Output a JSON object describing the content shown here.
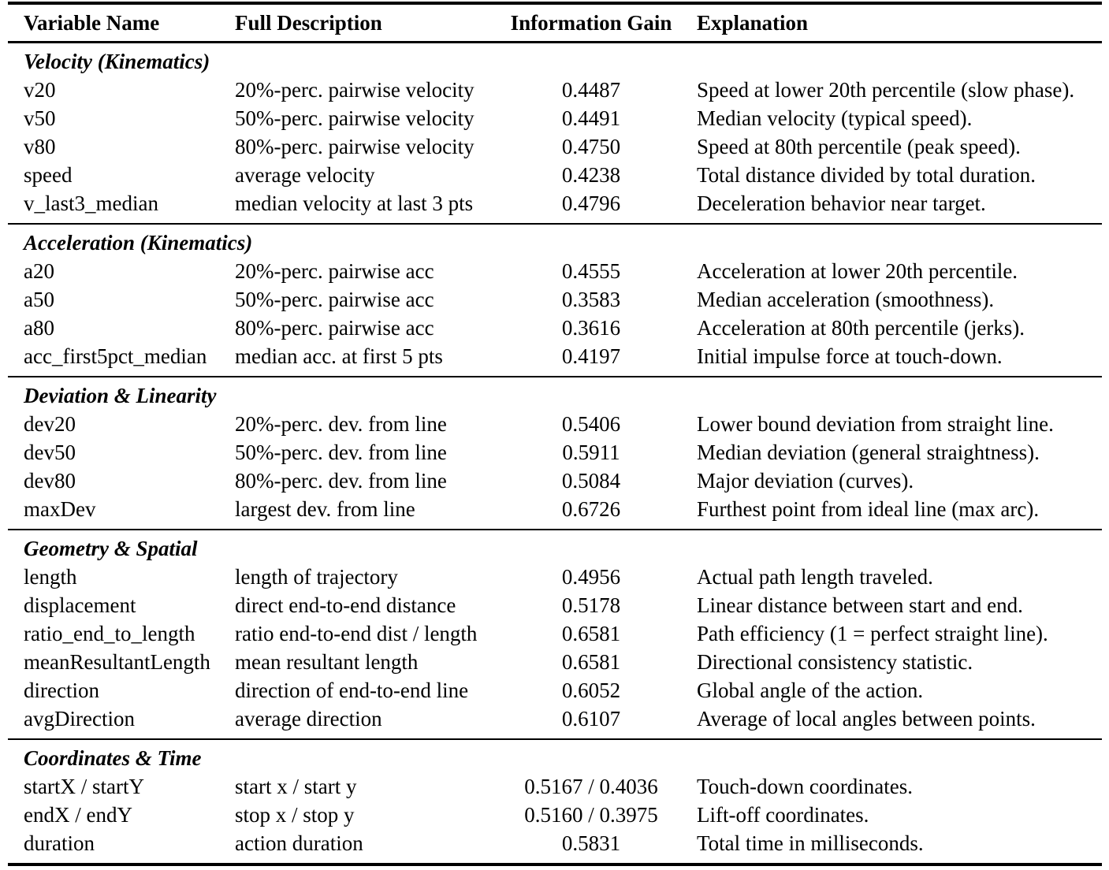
{
  "colors": {
    "background": "#ffffff",
    "text": "#000000",
    "rule": "#000000"
  },
  "table": {
    "columns": [
      "Variable Name",
      "Full Description",
      "Information Gain",
      "Explanation"
    ],
    "sections": [
      {
        "title": "Velocity (Kinematics)",
        "rows": [
          [
            "v20",
            "20%-perc. pairwise velocity",
            "0.4487",
            "Speed at lower 20th percentile (slow phase)."
          ],
          [
            "v50",
            "50%-perc. pairwise velocity",
            "0.4491",
            "Median velocity (typical speed)."
          ],
          [
            "v80",
            "80%-perc. pairwise velocity",
            "0.4750",
            "Speed at 80th percentile (peak speed)."
          ],
          [
            "speed",
            "average velocity",
            "0.4238",
            "Total distance divided by total duration."
          ],
          [
            "v_last3_median",
            "median velocity at last 3 pts",
            "0.4796",
            "Deceleration behavior near target."
          ]
        ]
      },
      {
        "title": "Acceleration (Kinematics)",
        "rows": [
          [
            "a20",
            "20%-perc. pairwise acc",
            "0.4555",
            "Acceleration at lower 20th percentile."
          ],
          [
            "a50",
            "50%-perc. pairwise acc",
            "0.3583",
            "Median acceleration (smoothness)."
          ],
          [
            "a80",
            "80%-perc. pairwise acc",
            "0.3616",
            "Acceleration at 80th percentile (jerks)."
          ],
          [
            "acc_first5pct_median",
            "median acc. at first 5 pts",
            "0.4197",
            "Initial impulse force at touch-down."
          ]
        ]
      },
      {
        "title": "Deviation & Linearity",
        "rows": [
          [
            "dev20",
            "20%-perc. dev. from line",
            "0.5406",
            "Lower bound deviation from straight line."
          ],
          [
            "dev50",
            "50%-perc. dev. from line",
            "0.5911",
            "Median deviation (general straightness)."
          ],
          [
            "dev80",
            "80%-perc. dev. from line",
            "0.5084",
            "Major deviation (curves)."
          ],
          [
            "maxDev",
            "largest dev. from line",
            "0.6726",
            "Furthest point from ideal line (max arc)."
          ]
        ]
      },
      {
        "title": "Geometry & Spatial",
        "rows": [
          [
            "length",
            "length of trajectory",
            "0.4956",
            "Actual path length traveled."
          ],
          [
            "displacement",
            "direct end-to-end distance",
            "0.5178",
            "Linear distance between start and end."
          ],
          [
            "ratio_end_to_length",
            "ratio end-to-end dist / length",
            "0.6581",
            "Path efficiency (1 = perfect straight line)."
          ],
          [
            "meanResultantLength",
            "mean resultant length",
            "0.6581",
            "Directional consistency statistic."
          ],
          [
            "direction",
            "direction of end-to-end line",
            "0.6052",
            "Global angle of the action."
          ],
          [
            "avgDirection",
            "average direction",
            "0.6107",
            "Average of local angles between points."
          ]
        ]
      },
      {
        "title": "Coordinates & Time",
        "rows": [
          [
            "startX / startY",
            "start x / start y",
            "0.5167 / 0.4036",
            "Touch-down coordinates."
          ],
          [
            "endX / endY",
            "stop x / stop y",
            "0.5160 / 0.3975",
            "Lift-off coordinates."
          ],
          [
            "duration",
            "action duration",
            "0.5831",
            "Total time in milliseconds."
          ]
        ]
      }
    ]
  }
}
